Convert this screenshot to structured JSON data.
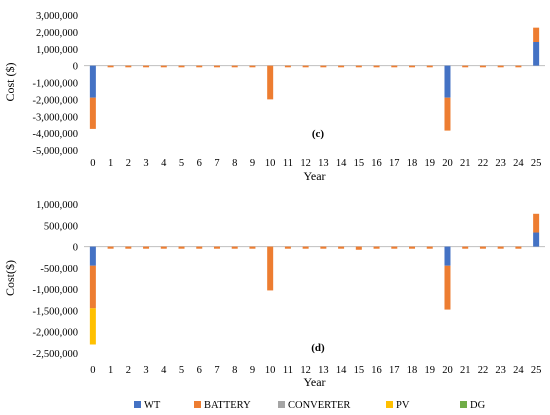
{
  "chart_data": [
    {
      "type": "bar",
      "stacked": true,
      "panel_label": "(c)",
      "xlabel": "Year",
      "ylabel": "Cost ($)",
      "ylim": [
        -5000000,
        3000000
      ],
      "yticks": [
        3000000,
        2000000,
        1000000,
        0,
        -1000000,
        -2000000,
        -3000000,
        -4000000,
        -5000000
      ],
      "ytick_labels": [
        "3,000,000",
        "2,000,000",
        "1,000,000",
        "0",
        "-1,000,000",
        "-2,000,000",
        "-3,000,000",
        "-4,000,000",
        "-5,000,000"
      ],
      "categories": [
        "0",
        "1",
        "2",
        "3",
        "4",
        "5",
        "6",
        "7",
        "8",
        "9",
        "10",
        "11",
        "12",
        "13",
        "14",
        "15",
        "16",
        "17",
        "18",
        "19",
        "20",
        "21",
        "22",
        "23",
        "24",
        "25"
      ],
      "series": [
        {
          "name": "WT",
          "color": "#4472C4",
          "values": [
            -1900000,
            0,
            0,
            0,
            0,
            0,
            0,
            0,
            0,
            0,
            0,
            0,
            0,
            0,
            0,
            0,
            0,
            0,
            0,
            0,
            -1900000,
            0,
            0,
            0,
            0,
            1400000
          ]
        },
        {
          "name": "BATTERY",
          "color": "#ED7D31",
          "values": [
            -1850000,
            -100000,
            -100000,
            -100000,
            -100000,
            -100000,
            -100000,
            -100000,
            -100000,
            -100000,
            -2000000,
            -100000,
            -100000,
            -100000,
            -100000,
            -100000,
            -100000,
            -100000,
            -100000,
            -100000,
            -1950000,
            -100000,
            -100000,
            -100000,
            -100000,
            850000
          ]
        },
        {
          "name": "CONVERTER",
          "color": "#A5A5A5",
          "values": [
            0,
            0,
            0,
            0,
            0,
            0,
            0,
            0,
            0,
            0,
            0,
            0,
            0,
            0,
            0,
            0,
            0,
            0,
            0,
            0,
            0,
            0,
            0,
            0,
            0,
            0
          ]
        }
      ]
    },
    {
      "type": "bar",
      "stacked": true,
      "panel_label": "(d)",
      "xlabel": "Year",
      "ylabel": "Cost($)",
      "ylim": [
        -2500000,
        1000000
      ],
      "yticks": [
        1000000,
        500000,
        0,
        -500000,
        -1000000,
        -1500000,
        -2000000,
        -2500000
      ],
      "ytick_labels": [
        "1,000,000",
        "500,000",
        "0",
        "-500,000",
        "-1,000,000",
        "-1,500,000",
        "-2,000,000",
        "-2,500,000"
      ],
      "categories": [
        "0",
        "1",
        "2",
        "3",
        "4",
        "5",
        "6",
        "7",
        "8",
        "9",
        "10",
        "11",
        "12",
        "13",
        "14",
        "15",
        "16",
        "17",
        "18",
        "19",
        "20",
        "21",
        "22",
        "23",
        "24",
        "25"
      ],
      "series": [
        {
          "name": "WT",
          "color": "#4472C4",
          "values": [
            -450000,
            0,
            0,
            0,
            0,
            0,
            0,
            0,
            0,
            0,
            0,
            0,
            0,
            0,
            0,
            0,
            0,
            0,
            0,
            0,
            -450000,
            0,
            0,
            0,
            0,
            330000
          ]
        },
        {
          "name": "BATTERY",
          "color": "#ED7D31",
          "values": [
            -1000000,
            -50000,
            -50000,
            -50000,
            -50000,
            -50000,
            -50000,
            -50000,
            -50000,
            -50000,
            -1030000,
            -50000,
            -50000,
            -50000,
            -50000,
            -75000,
            -50000,
            -50000,
            -50000,
            -50000,
            -1030000,
            -50000,
            -50000,
            -50000,
            -50000,
            440000
          ]
        },
        {
          "name": "CONVERTER",
          "color": "#A5A5A5",
          "values": [
            0,
            0,
            0,
            0,
            0,
            0,
            0,
            0,
            0,
            0,
            0,
            0,
            0,
            0,
            0,
            0,
            0,
            0,
            0,
            0,
            0,
            0,
            0,
            0,
            0,
            0
          ]
        },
        {
          "name": "PV",
          "color": "#FFC000",
          "values": [
            -850000,
            0,
            0,
            0,
            0,
            0,
            0,
            0,
            0,
            0,
            0,
            0,
            0,
            0,
            0,
            0,
            0,
            0,
            0,
            0,
            0,
            0,
            0,
            0,
            0,
            0
          ]
        },
        {
          "name": "DG",
          "color": "#70AD47",
          "values": [
            0,
            0,
            0,
            0,
            0,
            0,
            0,
            0,
            0,
            0,
            0,
            0,
            0,
            0,
            0,
            0,
            0,
            0,
            0,
            0,
            0,
            0,
            0,
            0,
            0,
            0
          ]
        }
      ]
    }
  ],
  "legend": {
    "placement": "bottom",
    "items": [
      {
        "name": "WT",
        "color": "#4472C4"
      },
      {
        "name": "BATTERY",
        "color": "#ED7D31"
      },
      {
        "name": "CONVERTER",
        "color": "#A5A5A5"
      },
      {
        "name": "PV",
        "color": "#FFC000"
      },
      {
        "name": "DG",
        "color": "#70AD47"
      }
    ]
  }
}
